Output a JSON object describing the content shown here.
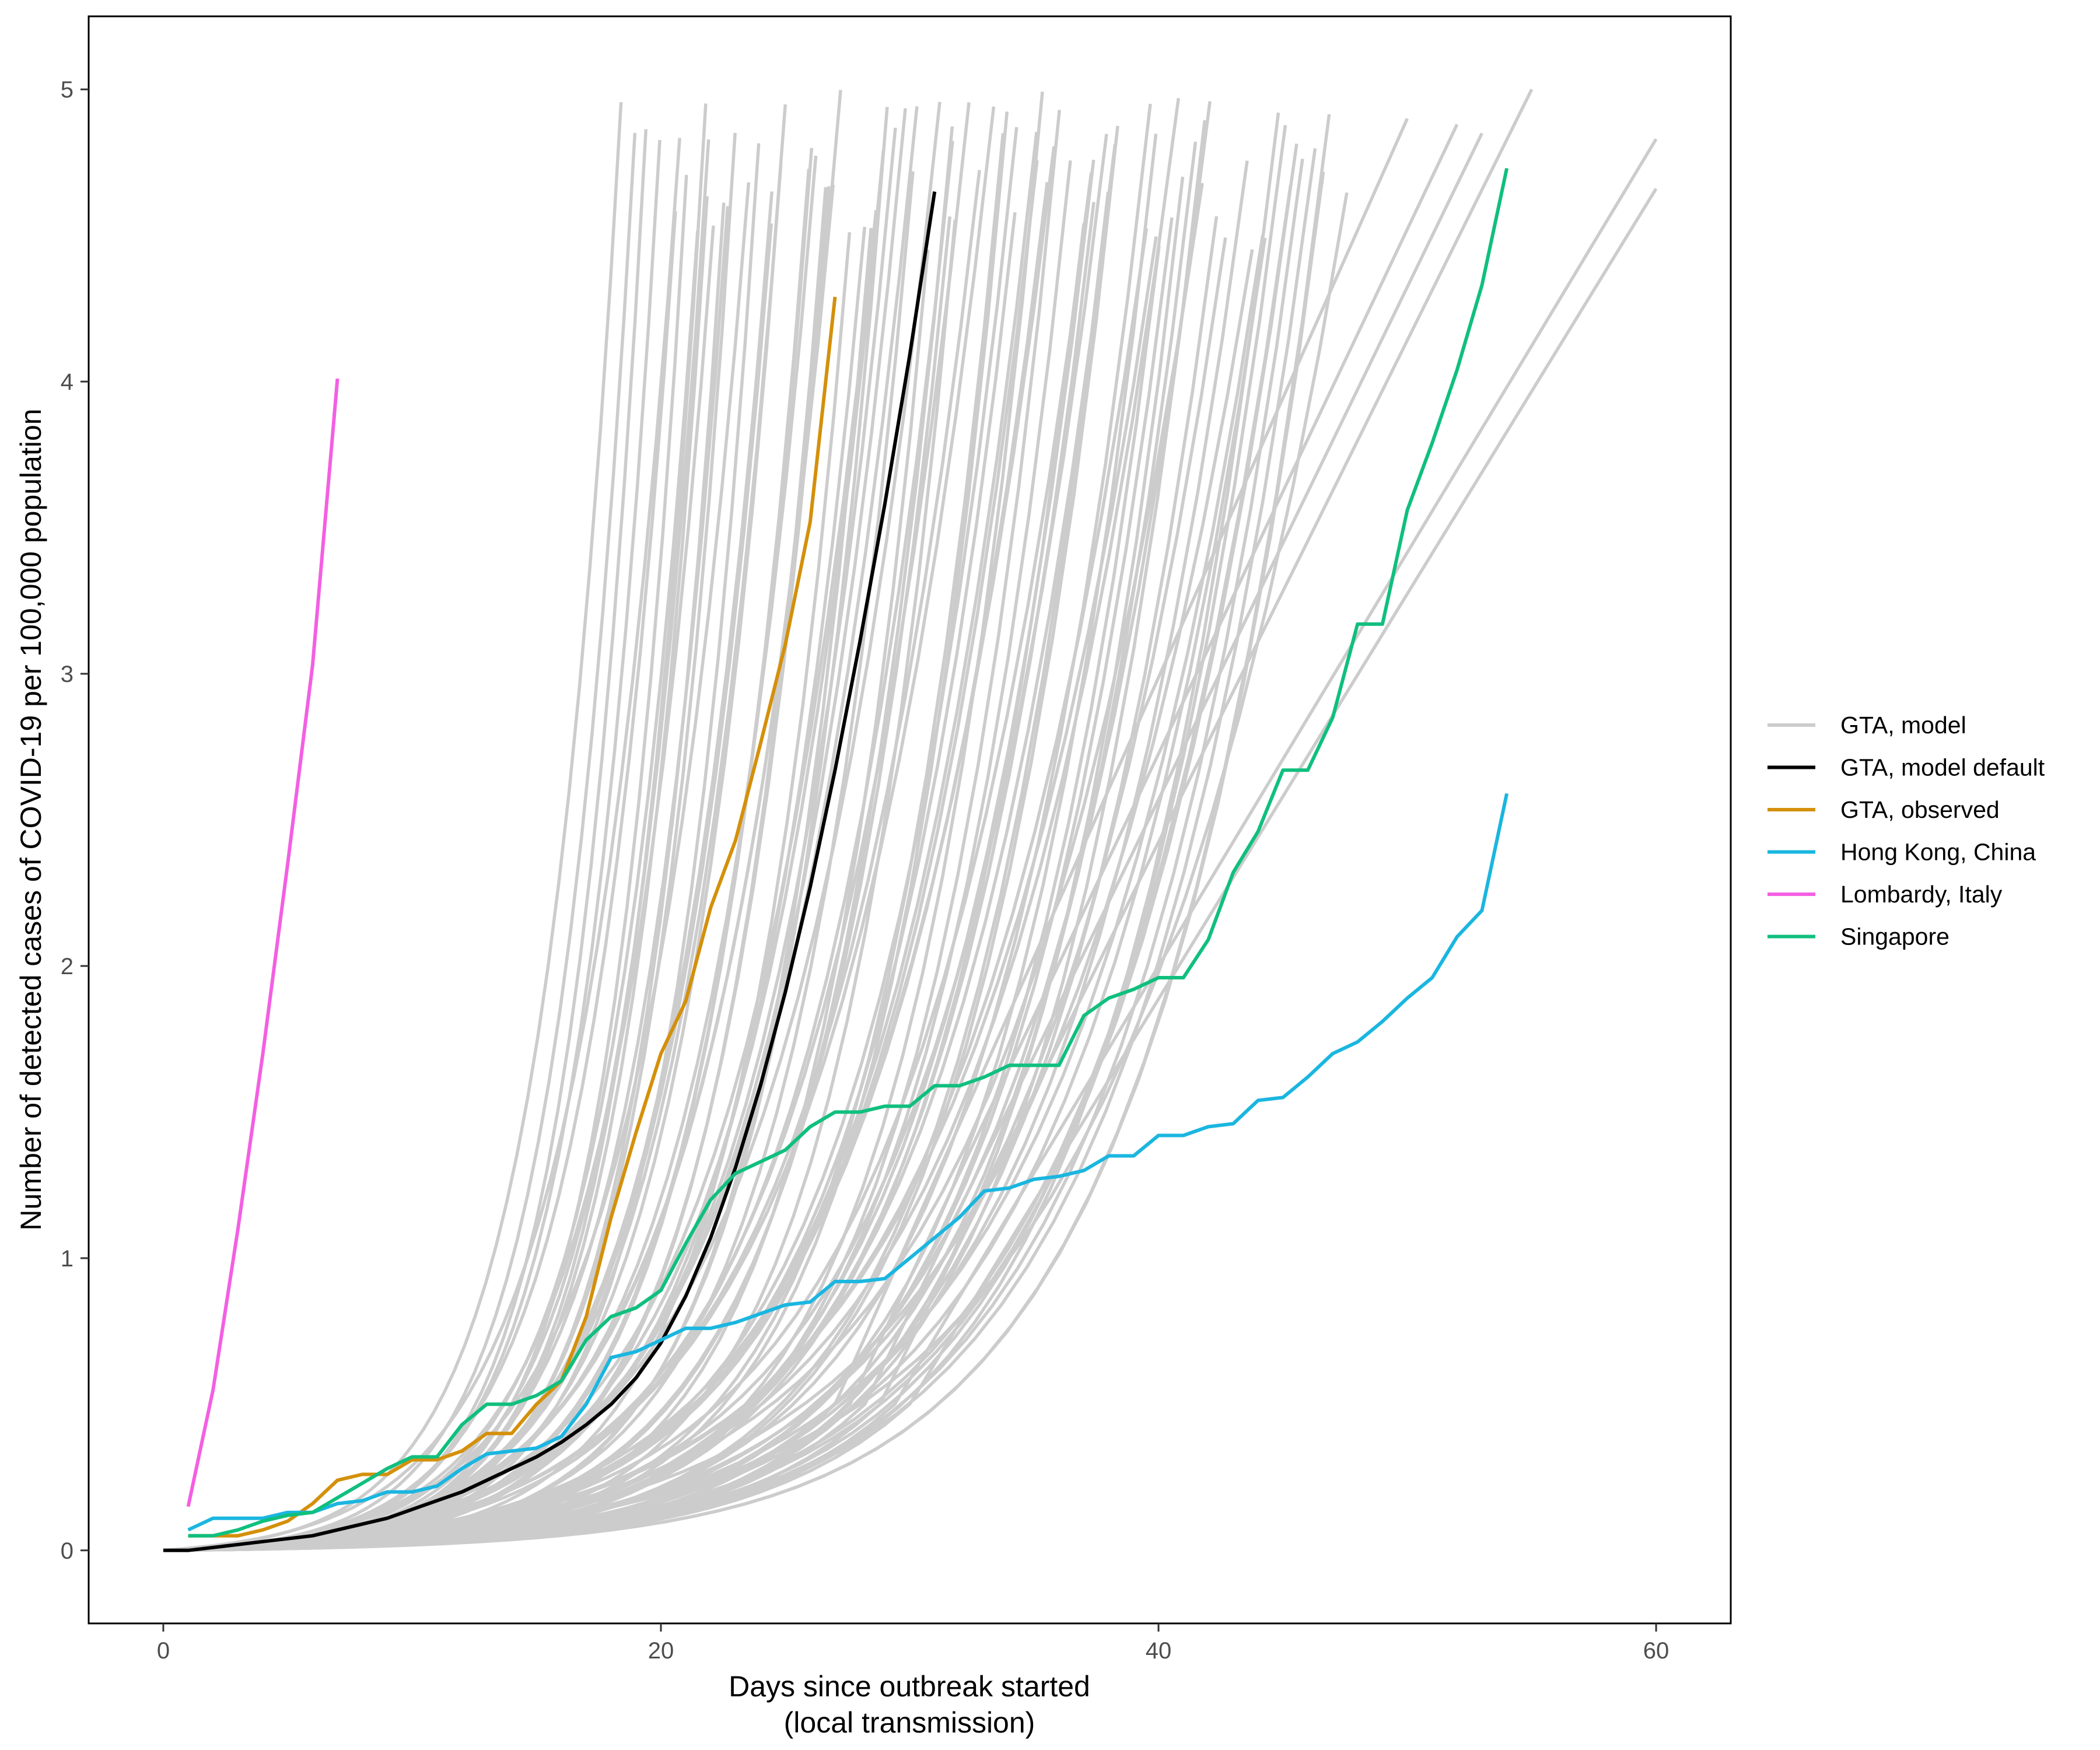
{
  "chart_data": {
    "type": "line",
    "xlabel_line1": "Days since outbreak started",
    "xlabel_line2": "(local transmission)",
    "ylabel": "Number of detected cases of COVID-19 per 100,000 population",
    "xlim": [
      -3,
      63
    ],
    "ylim": [
      -0.25,
      5.25
    ],
    "xticks": [
      0,
      20,
      40,
      60
    ],
    "yticks": [
      0,
      1,
      2,
      3,
      4,
      5
    ],
    "grid": false,
    "legend_position": "right",
    "legend": [
      {
        "label": "GTA, model",
        "color": "#cccccc"
      },
      {
        "label": "GTA, model default",
        "color": "#000000"
      },
      {
        "label": "GTA, observed",
        "color": "#d4900b"
      },
      {
        "label": "Hong Kong, China",
        "color": "#1ab6e0"
      },
      {
        "label": "Lombardy, Italy",
        "color": "#f35fe2"
      },
      {
        "label": "Singapore",
        "color": "#10bf7e"
      }
    ],
    "model_simulations": {
      "count": 100,
      "color": "#cccccc",
      "start_day": 0,
      "start_value": 0,
      "max_value": 5,
      "steep_end_day_range": [
        19,
        47
      ],
      "shallow_end_days": [
        50,
        52,
        53,
        55,
        60,
        60
      ],
      "shallow_end_values": [
        4.9,
        4.88,
        4.85,
        5.0,
        4.83,
        4.66
      ]
    },
    "series": [
      {
        "name": "GTA, model default",
        "color": "#000000",
        "x": [
          0,
          1,
          2,
          3,
          4,
          5,
          6,
          7,
          8,
          9,
          10,
          11,
          12,
          13,
          14,
          15,
          16,
          17,
          18,
          19,
          20,
          21,
          22,
          23,
          24,
          25,
          26,
          27,
          28,
          29,
          30,
          31
        ],
        "y": [
          0,
          0,
          0.01,
          0.02,
          0.03,
          0.04,
          0.05,
          0.07,
          0.09,
          0.11,
          0.14,
          0.17,
          0.2,
          0.24,
          0.28,
          0.32,
          0.37,
          0.43,
          0.5,
          0.59,
          0.71,
          0.87,
          1.07,
          1.31,
          1.59,
          1.91,
          2.27,
          2.67,
          3.11,
          3.58,
          4.09,
          4.65
        ]
      },
      {
        "name": "GTA, observed",
        "color": "#d4900b",
        "x": [
          1,
          2,
          3,
          4,
          5,
          6,
          7,
          8,
          9,
          10,
          11,
          12,
          13,
          14,
          15,
          16,
          17,
          18,
          19,
          20,
          21,
          22,
          23,
          24,
          25,
          26,
          27
        ],
        "y": [
          0.05,
          0.05,
          0.05,
          0.07,
          0.1,
          0.16,
          0.24,
          0.26,
          0.26,
          0.31,
          0.31,
          0.34,
          0.4,
          0.4,
          0.5,
          0.58,
          0.8,
          1.14,
          1.43,
          1.7,
          1.88,
          2.2,
          2.43,
          2.76,
          3.1,
          3.52,
          4.29
        ]
      },
      {
        "name": "Hong Kong, China",
        "color": "#1ab6e0",
        "x": [
          1,
          2,
          3,
          4,
          5,
          6,
          7,
          8,
          9,
          10,
          11,
          12,
          13,
          14,
          15,
          16,
          17,
          18,
          19,
          20,
          21,
          22,
          23,
          24,
          25,
          26,
          27,
          28,
          29,
          30,
          31,
          32,
          33,
          34,
          35,
          36,
          37,
          38,
          39,
          40,
          41,
          42,
          43,
          44,
          45,
          46,
          47,
          48,
          49,
          50,
          51,
          52,
          53,
          54
        ],
        "y": [
          0.07,
          0.11,
          0.11,
          0.11,
          0.13,
          0.13,
          0.16,
          0.17,
          0.2,
          0.2,
          0.22,
          0.28,
          0.33,
          0.34,
          0.35,
          0.39,
          0.5,
          0.66,
          0.68,
          0.72,
          0.76,
          0.76,
          0.78,
          0.81,
          0.84,
          0.85,
          0.92,
          0.92,
          0.93,
          1.0,
          1.07,
          1.14,
          1.23,
          1.24,
          1.27,
          1.28,
          1.3,
          1.35,
          1.35,
          1.42,
          1.42,
          1.45,
          1.46,
          1.54,
          1.55,
          1.62,
          1.7,
          1.74,
          1.81,
          1.89,
          1.96,
          2.1,
          2.19,
          2.59
        ]
      },
      {
        "name": "Lombardy, Italy",
        "color": "#f35fe2",
        "x": [
          1,
          2,
          3,
          4,
          5,
          6,
          7
        ],
        "y": [
          0.15,
          0.55,
          1.1,
          1.7,
          2.35,
          3.03,
          4.01
        ]
      },
      {
        "name": "Singapore",
        "color": "#10bf7e",
        "x": [
          1,
          2,
          3,
          4,
          5,
          6,
          7,
          8,
          9,
          10,
          11,
          12,
          13,
          14,
          15,
          16,
          17,
          18,
          19,
          20,
          21,
          22,
          23,
          24,
          25,
          26,
          27,
          28,
          29,
          30,
          31,
          32,
          33,
          34,
          35,
          36,
          37,
          38,
          39,
          40,
          41,
          42,
          43,
          44,
          45,
          46,
          47,
          48,
          49,
          50,
          51,
          52,
          53,
          54
        ],
        "y": [
          0.05,
          0.05,
          0.07,
          0.1,
          0.12,
          0.13,
          0.18,
          0.23,
          0.28,
          0.32,
          0.32,
          0.43,
          0.5,
          0.5,
          0.53,
          0.58,
          0.72,
          0.8,
          0.83,
          0.89,
          1.05,
          1.2,
          1.29,
          1.33,
          1.37,
          1.45,
          1.5,
          1.5,
          1.52,
          1.52,
          1.59,
          1.59,
          1.62,
          1.66,
          1.66,
          1.66,
          1.83,
          1.89,
          1.92,
          1.96,
          1.96,
          2.09,
          2.32,
          2.46,
          2.67,
          2.67,
          2.85,
          3.17,
          3.17,
          3.56,
          3.79,
          4.04,
          4.33,
          4.73
        ]
      }
    ]
  }
}
